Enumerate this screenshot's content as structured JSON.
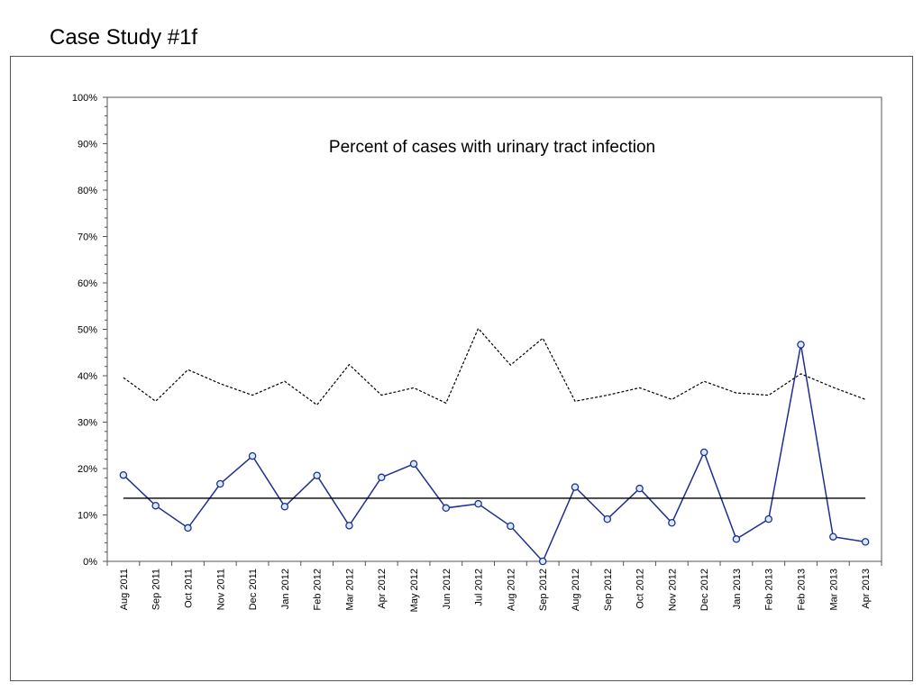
{
  "slide": {
    "title": "Case Study #1f"
  },
  "chart_data": {
    "type": "line",
    "title": "Percent of cases with urinary tract infection",
    "xlabel": "",
    "ylabel": "",
    "ylim": [
      0,
      100
    ],
    "ytick_labels": [
      "0%",
      "10%",
      "20%",
      "30%",
      "40%",
      "50%",
      "60%",
      "70%",
      "80%",
      "90%",
      "100%"
    ],
    "categories": [
      "Aug 2011",
      "Sep 2011",
      "Oct 2011",
      "Nov 2011",
      "Dec 2011",
      "Jan 2012",
      "Feb 2012",
      "Mar 2012",
      "Apr 2012",
      "May 2012",
      "Jun 2012",
      "Jul 2012",
      "Aug 2012",
      "Sep 2012",
      "Aug 2012",
      "Sep 2012",
      "Oct 2012",
      "Nov 2012",
      "Dec 2012",
      "Jan 2013",
      "Feb 2013",
      "Feb 2013",
      "Mar 2013",
      "Apr 2013"
    ],
    "series": [
      {
        "role": "data",
        "color": "#1f2f8f",
        "marker": "circle",
        "values": [
          18.6,
          12.0,
          7.2,
          16.7,
          22.7,
          11.8,
          18.5,
          7.7,
          18.1,
          21.0,
          11.5,
          12.4,
          7.6,
          0,
          16.0,
          9.1,
          15.7,
          8.3,
          23.5,
          4.8,
          9.1,
          46.7,
          5.3,
          4.2
        ]
      },
      {
        "role": "center line",
        "color": "#000000",
        "values": [
          13.6,
          13.6,
          13.6,
          13.6,
          13.6,
          13.6,
          13.6,
          13.6,
          13.6,
          13.6,
          13.6,
          13.6,
          13.6,
          13.6,
          13.6,
          13.6,
          13.6,
          13.6,
          13.6,
          13.6,
          13.6,
          13.6,
          13.6,
          13.6
        ]
      },
      {
        "role": "upper limit",
        "color": "#000000",
        "dashed": true,
        "values": [
          39.6,
          34.5,
          41.3,
          38.3,
          35.8,
          38.8,
          33.7,
          42.4,
          35.8,
          37.4,
          34.1,
          50.2,
          42.3,
          48.1,
          34.5,
          35.8,
          37.4,
          34.9,
          38.8,
          36.3,
          35.8,
          40.4,
          37.5,
          34.9
        ]
      }
    ],
    "grid": false,
    "legend": "none"
  }
}
